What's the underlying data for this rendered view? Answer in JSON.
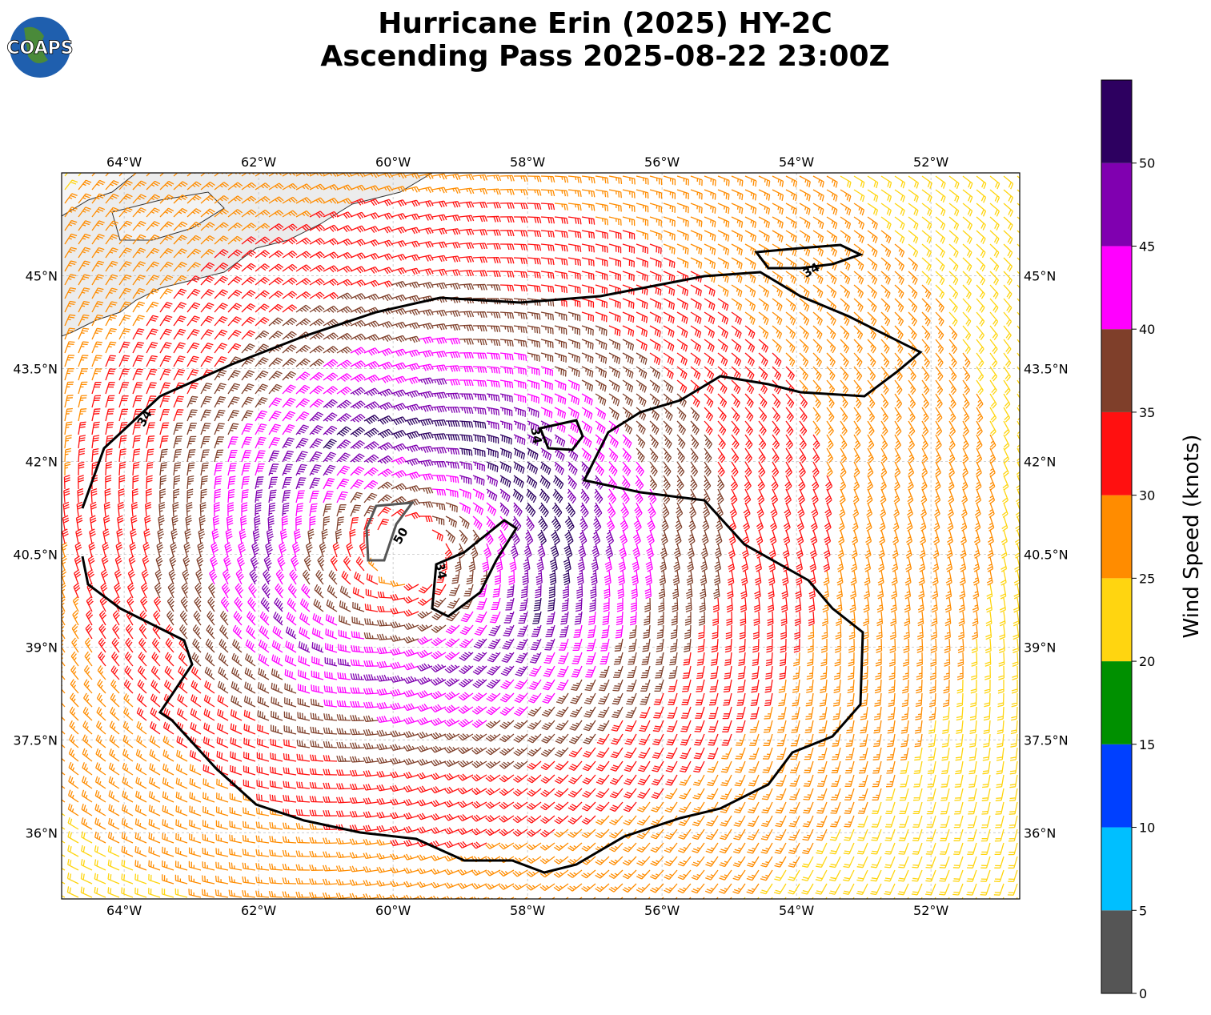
{
  "title": [
    "Hurricane Erin (2025) HY-2C",
    "Ascending Pass 2025-08-22 23:00Z"
  ],
  "logo": "COAPS",
  "map": {
    "xlim": [
      -64.93,
      -50.68
    ],
    "ylim": [
      34.93,
      46.66
    ],
    "xticks": [
      {
        "value": -64,
        "label": "64°W"
      },
      {
        "value": -62,
        "label": "62°W"
      },
      {
        "value": -60,
        "label": "60°W"
      },
      {
        "value": -58,
        "label": "58°W"
      },
      {
        "value": -56,
        "label": "56°W"
      },
      {
        "value": -54,
        "label": "54°W"
      },
      {
        "value": -52,
        "label": "52°W"
      }
    ],
    "yticks": [
      {
        "value": 45,
        "label": "45°N"
      },
      {
        "value": 43.5,
        "label": "43.5°N"
      },
      {
        "value": 42,
        "label": "42°N"
      },
      {
        "value": 40.5,
        "label": "40.5°N"
      },
      {
        "value": 39,
        "label": "39°N"
      },
      {
        "value": 37.5,
        "label": "37.5°N"
      },
      {
        "value": 36,
        "label": "36°N"
      }
    ],
    "grid": true,
    "contour_labels": [
      "34",
      "34",
      "34",
      "34",
      "50"
    ]
  },
  "colorbar": {
    "label": "Wind Speed (knots)",
    "lim": [
      0,
      55
    ],
    "bounds": [
      0,
      5,
      10,
      15,
      20,
      25,
      30,
      35,
      40,
      45,
      50,
      55
    ],
    "ticks": [
      0,
      5,
      10,
      15,
      20,
      25,
      30,
      35,
      40,
      45,
      50
    ],
    "colors": [
      "#555555",
      "#00bfff",
      "#0040ff",
      "#009000",
      "#ffd510",
      "#ff8c00",
      "#ff1010",
      "#7f3f2a",
      "#ff00ff",
      "#8000b0",
      "#2d0060"
    ]
  }
}
